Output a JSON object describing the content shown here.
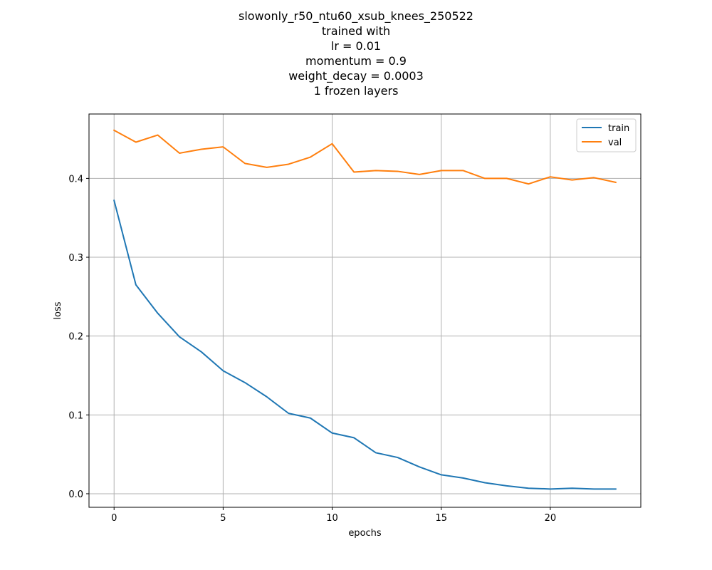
{
  "chart_data": {
    "type": "line",
    "title_lines": [
      "slowonly_r50_ntu60_xsub_knees_250522",
      "trained with",
      "lr = 0.01",
      "momentum = 0.9",
      "weight_decay = 0.0003",
      "1 frozen layers"
    ],
    "xlabel": "epochs",
    "ylabel": "loss",
    "xlim": [
      -1.15,
      24.15
    ],
    "ylim": [
      -0.0172,
      0.4817
    ],
    "xticks": [
      0,
      5,
      10,
      15,
      20
    ],
    "yticks": [
      0.0,
      0.1,
      0.2,
      0.3,
      0.4
    ],
    "ytick_labels": [
      "0.0",
      "0.1",
      "0.2",
      "0.3",
      "0.4"
    ],
    "grid": true,
    "legend_position": "top-right",
    "x": [
      0,
      1,
      2,
      3,
      4,
      5,
      6,
      7,
      8,
      9,
      10,
      11,
      12,
      13,
      14,
      15,
      16,
      17,
      18,
      19,
      20,
      21,
      22,
      23
    ],
    "series": [
      {
        "name": "train",
        "color": "#1f77b4",
        "values": [
          0.372,
          0.265,
          0.229,
          0.199,
          0.18,
          0.156,
          0.141,
          0.123,
          0.102,
          0.096,
          0.077,
          0.071,
          0.052,
          0.046,
          0.034,
          0.024,
          0.02,
          0.014,
          0.01,
          0.007,
          0.006,
          0.007,
          0.006,
          0.006
        ]
      },
      {
        "name": "val",
        "color": "#ff7f0e",
        "values": [
          0.461,
          0.446,
          0.455,
          0.432,
          0.437,
          0.44,
          0.419,
          0.414,
          0.418,
          0.427,
          0.444,
          0.408,
          0.41,
          0.409,
          0.405,
          0.41,
          0.41,
          0.4,
          0.4,
          0.393,
          0.402,
          0.398,
          0.401,
          0.395
        ]
      }
    ]
  }
}
